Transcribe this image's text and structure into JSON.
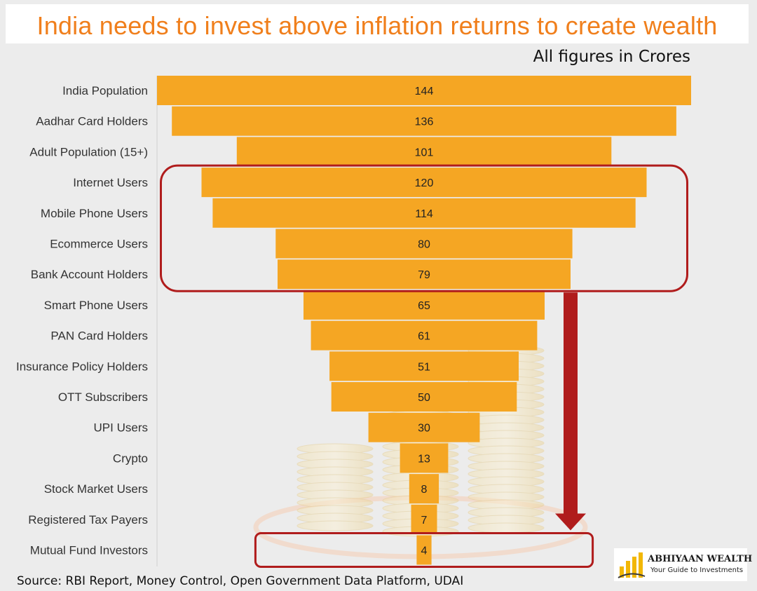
{
  "title": "India needs to invest above inflation returns to create wealth",
  "units_note": "All figures in Crores",
  "source": "Source: RBI Report, Money Control, Open Government Data Platform, UDAI",
  "logo": {
    "name": "ABHIYAAN WEALTH",
    "tagline": "Your Guide to Investments"
  },
  "colors": {
    "bar": "#f5a623",
    "title": "#f07f1c",
    "highlight": "#b01c1c",
    "background": "#ececec"
  },
  "chart_data": {
    "type": "bar",
    "orientation": "funnel",
    "categories": [
      "India Population",
      "Aadhar Card Holders",
      "Adult Population (15+)",
      "Internet Users",
      "Mobile Phone Users",
      "Ecommerce Users",
      "Bank Account Holders",
      "Smart Phone Users",
      "PAN Card Holders",
      "Insurance Policy Holders",
      "OTT Subscribers",
      "UPI Users",
      "Crypto",
      "Stock Market Users",
      "Registered Tax Payers",
      "Mutual Fund Investors"
    ],
    "values": [
      144,
      136,
      101,
      120,
      114,
      80,
      79,
      65,
      61,
      51,
      50,
      30,
      13,
      8,
      7,
      4
    ],
    "highlight_groups": [
      [
        "Internet Users",
        "Mobile Phone Users",
        "Ecommerce Users",
        "Bank Account Holders"
      ],
      [
        "Mutual Fund Investors"
      ]
    ],
    "grid": false,
    "legend": "none"
  }
}
